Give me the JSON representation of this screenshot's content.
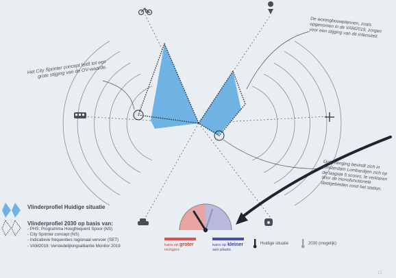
{
  "annotations": {
    "left": "Het City Sprinter concept leidt tot een grote stijging van de OV-waarde.",
    "top_right": "De woningbouwplannen, zoals opgenomen in de VAM2019, zorgen voor een stijging van de intensiteit.",
    "right": "Ook menging bevindt zich in Amsterdam Lombardijen zich op de laagste 5 scores, te verklaren door de monofunctionele deelgebieden rond het station."
  },
  "legend": {
    "current_label": "Vlinderprofiel Huidige situatie",
    "future_label": "Vlinderprofiel 2030 op basis van:",
    "future_sources": [
      "- PHS: Programma Hoogfrequent Spoor (NS)",
      "- City Sprinter concept (NS)",
      "- Indicatieve frequenties regionaal vervoer (SET)",
      "- VAM2019: Verstedelijkingsalliantie Monitor 2019"
    ]
  },
  "gauge": {
    "left_prefix": "kans op",
    "left_strong": "groter",
    "left_suffix": "reizigers",
    "right_prefix": "kans op",
    "right_strong": "kleiner",
    "right_suffix": "aan plaats",
    "current_label": "Huidige situatie",
    "future_label": "2030 (mogelijk)"
  },
  "icons": {
    "top_left": "bicycle-icon",
    "top_right": "location-pin-icon",
    "left": "bus-icon",
    "right": "plus-arrows-icon",
    "bottom_left": "car-icon",
    "bottom_right": "train-icon"
  },
  "colors": {
    "current_fill": "#6fb3e4",
    "future_outline": "#1e2530",
    "gauge_red": "#d9534f",
    "gauge_blue": "#4b4ea8",
    "ring": "#8d96a3"
  },
  "page_number": "11"
}
